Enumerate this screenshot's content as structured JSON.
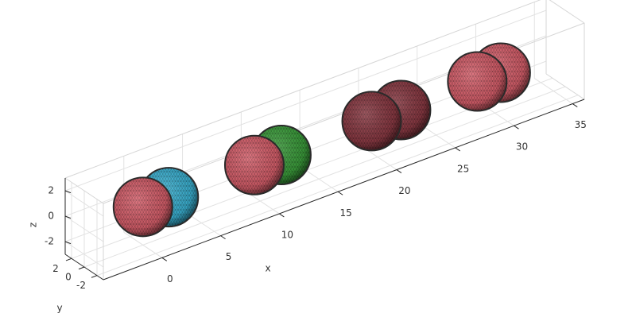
{
  "chart_data": {
    "type": "spheres3d",
    "xlabel": "x",
    "ylabel": "y",
    "zlabel": "z",
    "xlim": [
      -5,
      36
    ],
    "ylim": [
      -3,
      3
    ],
    "zlim": [
      -3,
      3
    ],
    "xticks": [
      0,
      5,
      10,
      15,
      20,
      25,
      30,
      35
    ],
    "yticks": [
      -2,
      0,
      2
    ],
    "zticks": [
      -2,
      0,
      2
    ],
    "grid": true,
    "spheres": [
      {
        "x": 0,
        "color": "#d9606c"
      },
      {
        "x": 2.2,
        "color": "#3bb3d4"
      },
      {
        "x": 9.5,
        "color": "#d9606c"
      },
      {
        "x": 11.8,
        "color": "#3c9f3c"
      },
      {
        "x": 19.5,
        "color": "#8c3a44"
      },
      {
        "x": 22,
        "color": "#8c3a44"
      },
      {
        "x": 28.5,
        "color": "#d9606c"
      },
      {
        "x": 30.5,
        "color": "#d9606c"
      }
    ]
  }
}
